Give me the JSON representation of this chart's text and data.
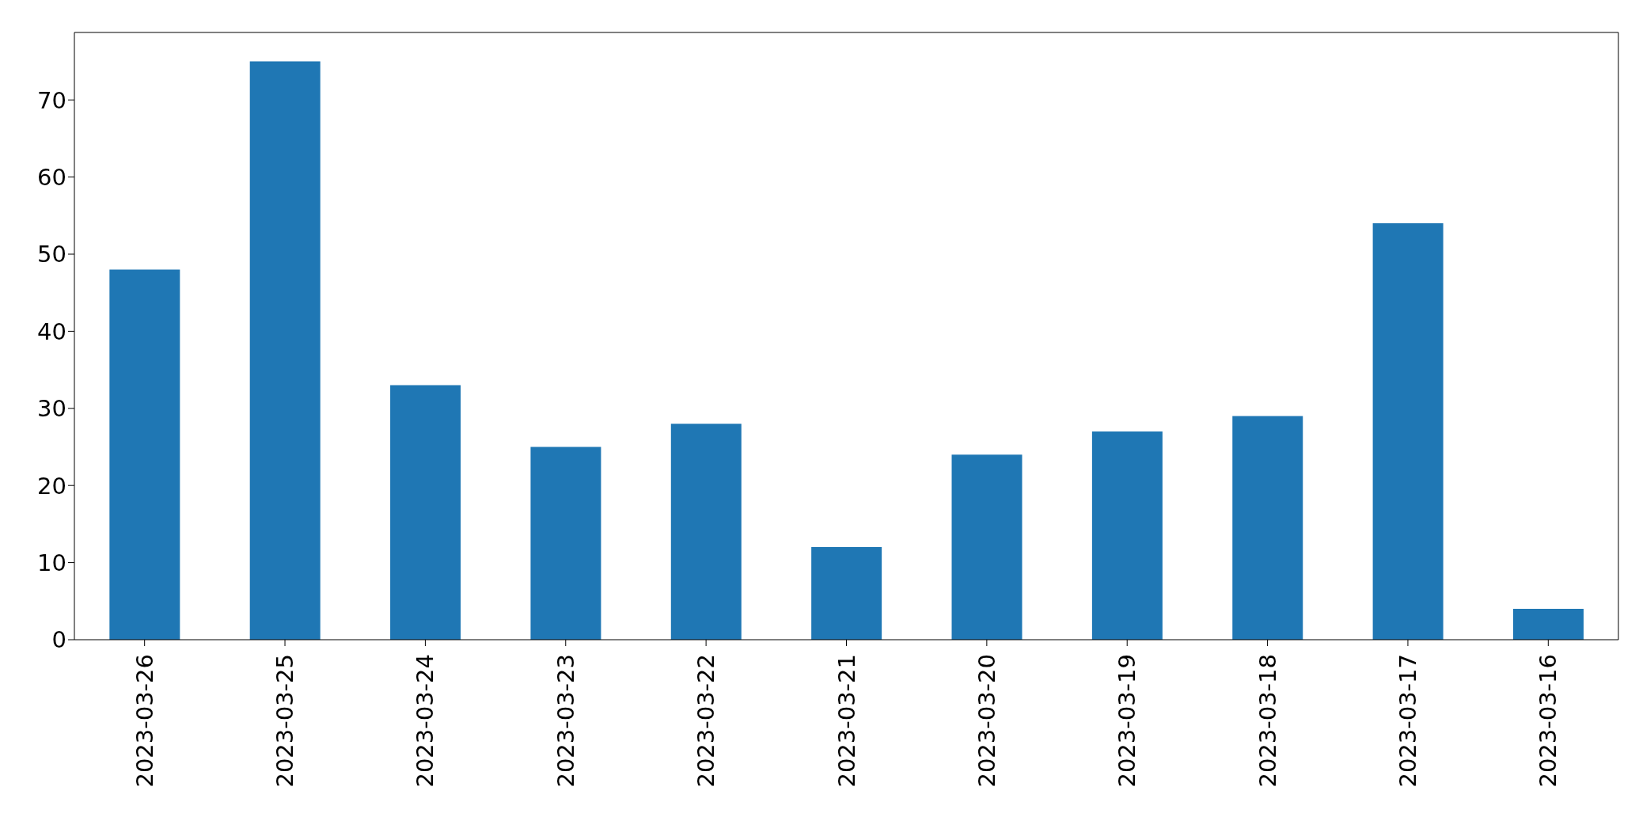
{
  "chart_data": {
    "type": "bar",
    "categories": [
      "2023-03-26",
      "2023-03-25",
      "2023-03-24",
      "2023-03-23",
      "2023-03-22",
      "2023-03-21",
      "2023-03-20",
      "2023-03-19",
      "2023-03-18",
      "2023-03-17",
      "2023-03-16"
    ],
    "values": [
      48,
      75,
      33,
      25,
      28,
      12,
      24,
      27,
      29,
      54,
      4
    ],
    "color": "#1f77b4",
    "ylim": [
      0,
      78.75
    ],
    "yticks": [
      0,
      10,
      20,
      30,
      40,
      50,
      60,
      70
    ],
    "grid": false,
    "legend": false
  }
}
